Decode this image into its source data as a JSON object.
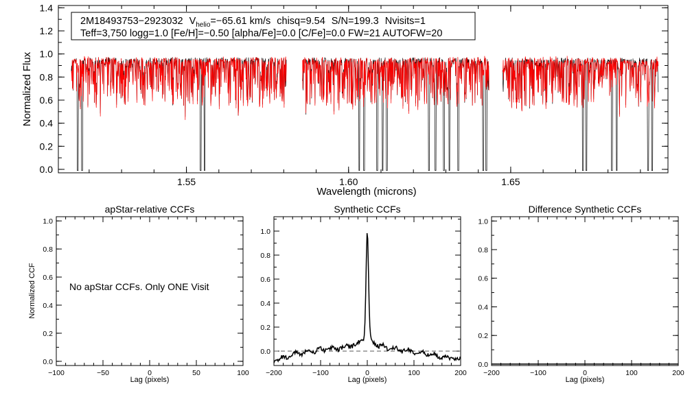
{
  "chart_data": [
    {
      "type": "line",
      "id": "spectrum",
      "info_line1": {
        "star": "2M18493753-2923032",
        "v_label": "V",
        "v_sub": "helio",
        "v_value": "=-65.61 km/s",
        "chisq": "chisq=9.54",
        "snr": "S/N=199.3",
        "nvisits": "Nvisits=1"
      },
      "info_line2": "Teff=3,750 logg=1.0 [Fe/H]=-0.50 [alpha/Fe]=0.0 [C/Fe]=0.0 FW=21 AUTOFW=20",
      "xlabel": "Wavelength (microns)",
      "ylabel": "Normalized Flux",
      "xlim": [
        1.5105,
        1.6985
      ],
      "ylim": [
        -0.03,
        1.42
      ],
      "xticks": [
        1.55,
        1.6,
        1.65
      ],
      "xtick_labels": [
        "1.55",
        "1.60",
        "1.65"
      ],
      "yticks": [
        0.0,
        0.2,
        0.4,
        0.6,
        0.8,
        1.0,
        1.2,
        1.4
      ],
      "ytick_labels": [
        "0.0",
        "0.2",
        "0.4",
        "0.6",
        "0.8",
        "1.0",
        "1.2",
        "1.4"
      ],
      "chips": [
        [
          1.5145,
          1.5808
        ],
        [
          1.5858,
          1.6433
        ],
        [
          1.6475,
          1.6955
        ]
      ],
      "series": [
        {
          "name": "observed",
          "color": "#000000",
          "continuum": 0.955
        },
        {
          "name": "model",
          "color": "#ff0000",
          "continuum": 0.94
        }
      ],
      "deep_lines_observed": [
        1.5165,
        1.5178,
        1.5544,
        1.5556,
        1.5808,
        1.6033,
        1.6048,
        1.6088,
        1.6105,
        1.6118,
        1.6248,
        1.6268,
        1.6294,
        1.6311,
        1.6338,
        1.6415,
        1.6425,
        1.6433,
        1.6475,
        1.6723,
        1.6733,
        1.6812,
        1.6827,
        1.6924,
        1.6936
      ]
    },
    {
      "type": "text",
      "id": "apstar-ccf",
      "title": "apStar-relative CCFs",
      "message": "No apStar CCFs.  Only ONE Visit",
      "xlabel": "Lag (pixels)",
      "ylabel": "Normalized CCF",
      "xlim": [
        -100,
        100
      ],
      "ylim": [
        -0.03,
        1.03
      ],
      "xticks": [
        -100,
        -50,
        0,
        50,
        100
      ],
      "xtick_labels": [
        "-100",
        "-50",
        "0",
        "50",
        "100"
      ],
      "yticks": [
        0.0,
        0.2,
        0.4,
        0.6,
        0.8,
        1.0
      ],
      "ytick_labels": [
        "0.0",
        "0.2",
        "0.4",
        "0.6",
        "0.8",
        "1.0"
      ]
    },
    {
      "type": "line",
      "id": "synthetic-ccf",
      "title": "Synthetic CCFs",
      "xlabel": "Lag (pixels)",
      "xlim": [
        -200,
        200
      ],
      "ylim": [
        -0.12,
        1.12
      ],
      "xticks": [
        -200,
        -100,
        0,
        100,
        200
      ],
      "xtick_labels": [
        "-200",
        "-100",
        "0",
        "100",
        "200"
      ],
      "yticks": [
        0.0,
        0.2,
        0.4,
        0.6,
        0.8,
        1.0
      ],
      "ytick_labels": [
        "0.0",
        "0.2",
        "0.4",
        "0.6",
        "0.8",
        "1.0"
      ],
      "peak_lag": 0,
      "peak_value": 1.0,
      "zero_line": 0.0,
      "baseline_points": [
        [
          -200,
          -0.08
        ],
        [
          -150,
          -0.02
        ],
        [
          -100,
          0.01
        ],
        [
          -50,
          0.03
        ],
        [
          -20,
          0.06
        ],
        [
          20,
          0.05
        ],
        [
          50,
          0.02
        ],
        [
          100,
          0.0
        ],
        [
          150,
          -0.04
        ],
        [
          200,
          -0.07
        ]
      ]
    },
    {
      "type": "line",
      "id": "difference-ccf",
      "title": "Difference Synthetic CCFs",
      "xlabel": "Lag (pixels)",
      "xlim": [
        -200,
        200
      ],
      "ylim": [
        -0.01,
        1.03
      ],
      "xticks": [
        -200,
        -100,
        0,
        100,
        200
      ],
      "xtick_labels": [
        "-200",
        "-100",
        "0",
        "100",
        "200"
      ],
      "yticks": [
        0.0,
        0.2,
        0.4,
        0.6,
        0.8,
        1.0
      ],
      "ytick_labels": [
        "0.0",
        "0.2",
        "0.4",
        "0.6",
        "0.8",
        "1.0"
      ],
      "values_constant": 0.0
    }
  ]
}
